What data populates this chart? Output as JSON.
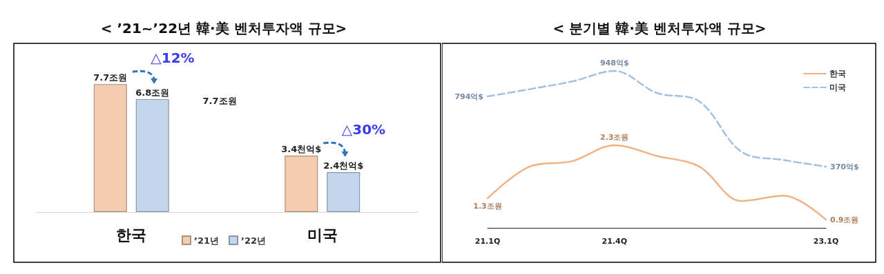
{
  "chart_data": [
    {
      "type": "bar",
      "title": "< ’21~’22년 韓·美 벤처투자액 규모>",
      "categories": [
        "한국",
        "미국"
      ],
      "legend": "bottom",
      "series": [
        {
          "name": "’21년",
          "color": "#f4cdb0",
          "values": [
            7.7,
            3.4
          ],
          "value_labels": [
            "7.7조원",
            "3.4천억$"
          ]
        },
        {
          "name": "’22년",
          "color": "#c3d6ec",
          "values": [
            6.8,
            2.4
          ],
          "value_labels": [
            "6.8조원",
            "2.4천억$"
          ]
        }
      ],
      "annotations": [
        "△12%",
        "△30%",
        "7.7조원"
      ]
    },
    {
      "type": "line",
      "title": "< 분기별 韓·美 벤처투자액 규모>",
      "categories": [
        "21.1Q",
        null,
        null,
        "21.4Q",
        null,
        null,
        null,
        null,
        "23.1Q"
      ],
      "legend": "top right",
      "marker": "none",
      "series": [
        {
          "name": "한국",
          "color": "#f2b183",
          "line_style": "solid",
          "values": [
            1.3,
            1.9,
            2.0,
            2.3,
            2.1,
            1.9,
            1.25,
            1.35,
            0.9
          ],
          "value_labels": [
            "1.3조원",
            null,
            null,
            "2.3조원",
            null,
            null,
            null,
            null,
            "0.9조원"
          ]
        },
        {
          "name": "미국",
          "color": "#a3c0e3",
          "line_style": "dashed",
          "axis": "y2",
          "values": [
            794,
            838,
            885,
            948,
            815,
            765,
            460,
            410,
            370
          ],
          "value_labels": [
            "794억$",
            null,
            null,
            "948억$",
            null,
            null,
            null,
            null,
            "370억$"
          ]
        }
      ]
    }
  ]
}
